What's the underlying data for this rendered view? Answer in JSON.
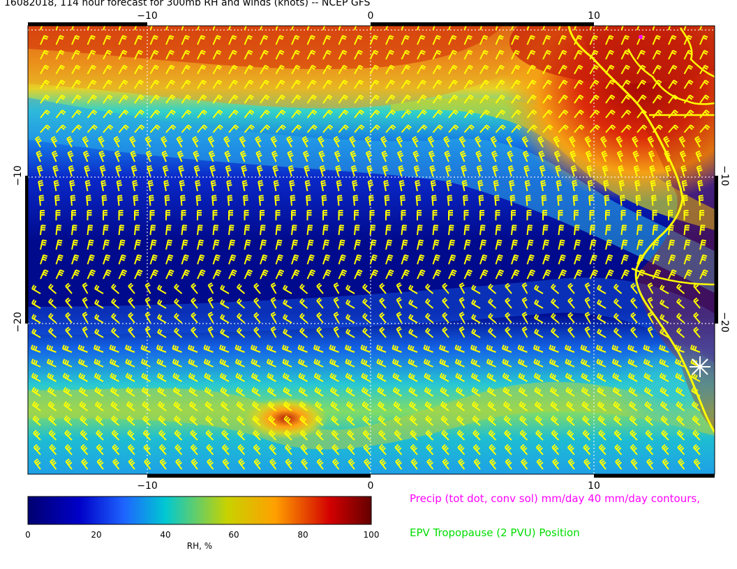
{
  "title": "16082018, 114 hour forecast for 300mb RH and winds (knots) -- NCEP GFS",
  "map": {
    "lon_range": [
      -15,
      15
    ],
    "lat_range": [
      -30,
      -0.5
    ],
    "lon_tick_labels": [
      "−10",
      "0",
      "10"
    ],
    "lat_tick_labels": [
      "−10",
      "−20"
    ],
    "right_lat_tick_labels": [
      "−10",
      "−20"
    ],
    "grid_lines": "dotted white",
    "wind_barb_color": "#ffff00",
    "coastline_color": "#ffff00",
    "marker": "white-star"
  },
  "colorbar": {
    "label": "RH, %",
    "ticks": [
      "0",
      "20",
      "40",
      "60",
      "80",
      "100"
    ],
    "colors": [
      "#000070",
      "#0000c8",
      "#1e64ff",
      "#00c8d2",
      "#c8d200",
      "#ffa000",
      "#d20000",
      "#640000"
    ]
  },
  "legend": {
    "precip_text": "Precip (tot dot, conv sol) mm/day 40 mm/day contours,",
    "precip_color": "#ff00ff",
    "epv_text": "EPV Tropopause (2 PVU) Position",
    "epv_color": "#00dd00"
  }
}
